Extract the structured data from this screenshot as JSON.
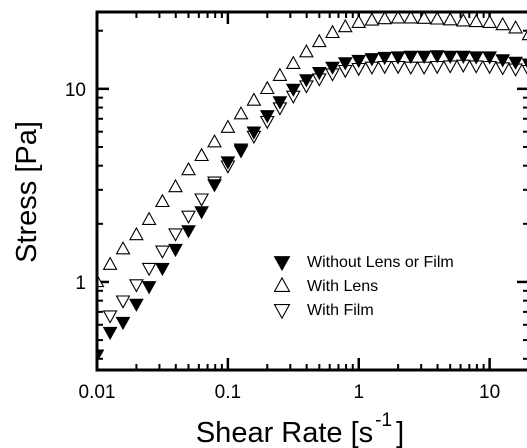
{
  "chart_data": {
    "type": "scatter",
    "xscale": "log",
    "yscale": "log",
    "xlim": [
      0.01,
      20
    ],
    "ylim": [
      0.35,
      25
    ],
    "xticks": [
      {
        "value": 0.01,
        "label": "0.01"
      },
      {
        "value": 0.1,
        "label": "0.1"
      },
      {
        "value": 1,
        "label": "1"
      },
      {
        "value": 10,
        "label": "10"
      }
    ],
    "yticks": [
      {
        "value": 1,
        "label": "1"
      },
      {
        "value": 10,
        "label": "10"
      }
    ],
    "xlabel": {
      "main": "Shear Rate [s",
      "sup": "-1",
      "close": "]"
    },
    "ylabel": "Stress [Pa]",
    "legend_position": "lower-right",
    "series": [
      {
        "name": "Without Lens or Film",
        "marker": "filled-down-triangle",
        "points": [
          [
            0.01,
            0.42
          ],
          [
            0.0126,
            0.55
          ],
          [
            0.0158,
            0.62
          ],
          [
            0.02,
            0.77
          ],
          [
            0.025,
            0.95
          ],
          [
            0.0316,
            1.18
          ],
          [
            0.0398,
            1.48
          ],
          [
            0.05,
            1.85
          ],
          [
            0.063,
            2.32
          ],
          [
            0.079,
            3.2
          ],
          [
            0.1,
            4.2
          ],
          [
            0.126,
            4.9
          ],
          [
            0.158,
            6.0
          ],
          [
            0.2,
            7.3
          ],
          [
            0.25,
            8.6
          ],
          [
            0.316,
            10.0
          ],
          [
            0.398,
            11.2
          ],
          [
            0.5,
            12.2
          ],
          [
            0.63,
            13.0
          ],
          [
            0.79,
            13.7
          ],
          [
            1.0,
            14.1
          ],
          [
            1.26,
            14.4
          ],
          [
            1.58,
            14.6
          ],
          [
            2.0,
            14.7
          ],
          [
            2.5,
            14.8
          ],
          [
            3.16,
            14.8
          ],
          [
            3.98,
            14.9
          ],
          [
            5.0,
            14.8
          ],
          [
            6.3,
            14.8
          ],
          [
            7.9,
            14.7
          ],
          [
            10.0,
            14.7
          ],
          [
            12.6,
            14.2
          ],
          [
            15.8,
            13.8
          ],
          [
            20.0,
            13.5
          ]
        ]
      },
      {
        "name": "With Lens",
        "marker": "open-up-triangle",
        "points": [
          [
            0.01,
            1.0
          ],
          [
            0.0126,
            1.23
          ],
          [
            0.0158,
            1.48
          ],
          [
            0.02,
            1.75
          ],
          [
            0.025,
            2.1
          ],
          [
            0.0316,
            2.6
          ],
          [
            0.0398,
            3.1
          ],
          [
            0.05,
            3.8
          ],
          [
            0.063,
            4.5
          ],
          [
            0.079,
            5.3
          ],
          [
            0.1,
            6.3
          ],
          [
            0.126,
            7.4
          ],
          [
            0.158,
            8.7
          ],
          [
            0.2,
            10.0
          ],
          [
            0.25,
            11.7
          ],
          [
            0.316,
            13.5
          ],
          [
            0.398,
            15.5
          ],
          [
            0.5,
            17.5
          ],
          [
            0.63,
            19.5
          ],
          [
            0.79,
            20.9
          ],
          [
            1.0,
            22.0
          ],
          [
            1.26,
            22.6
          ],
          [
            1.58,
            23.0
          ],
          [
            2.0,
            23.2
          ],
          [
            2.5,
            23.2
          ],
          [
            3.16,
            23.1
          ],
          [
            3.98,
            22.9
          ],
          [
            5.0,
            22.7
          ],
          [
            6.3,
            22.4
          ],
          [
            7.9,
            22.2
          ],
          [
            10.0,
            22.0
          ],
          [
            12.6,
            21.4
          ],
          [
            15.8,
            20.6
          ],
          [
            20.0,
            19.0
          ]
        ]
      },
      {
        "name": "With Film",
        "marker": "open-down-triangle",
        "points": [
          [
            0.0126,
            0.67
          ],
          [
            0.0158,
            0.8
          ],
          [
            0.02,
            0.97
          ],
          [
            0.025,
            1.18
          ],
          [
            0.0316,
            1.45
          ],
          [
            0.0398,
            1.78
          ],
          [
            0.05,
            2.2
          ],
          [
            0.063,
            2.7
          ],
          [
            0.079,
            3.3
          ],
          [
            0.1,
            4.0
          ],
          [
            0.126,
            4.8
          ],
          [
            0.158,
            5.7
          ],
          [
            0.2,
            6.8
          ],
          [
            0.25,
            8.0
          ],
          [
            0.316,
            9.2
          ],
          [
            0.398,
            10.4
          ],
          [
            0.5,
            11.3
          ],
          [
            0.63,
            12.0
          ],
          [
            0.79,
            12.5
          ],
          [
            1.0,
            12.8
          ],
          [
            1.26,
            13.0
          ],
          [
            1.58,
            13.1
          ],
          [
            2.0,
            13.1
          ],
          [
            2.5,
            13.0
          ],
          [
            3.16,
            13.0
          ],
          [
            3.98,
            13.1
          ],
          [
            5.0,
            13.2
          ],
          [
            6.3,
            13.3
          ],
          [
            7.9,
            13.2
          ],
          [
            10.0,
            13.1
          ],
          [
            12.6,
            12.9
          ],
          [
            15.8,
            12.7
          ],
          [
            20.0,
            12.5
          ]
        ]
      }
    ]
  }
}
